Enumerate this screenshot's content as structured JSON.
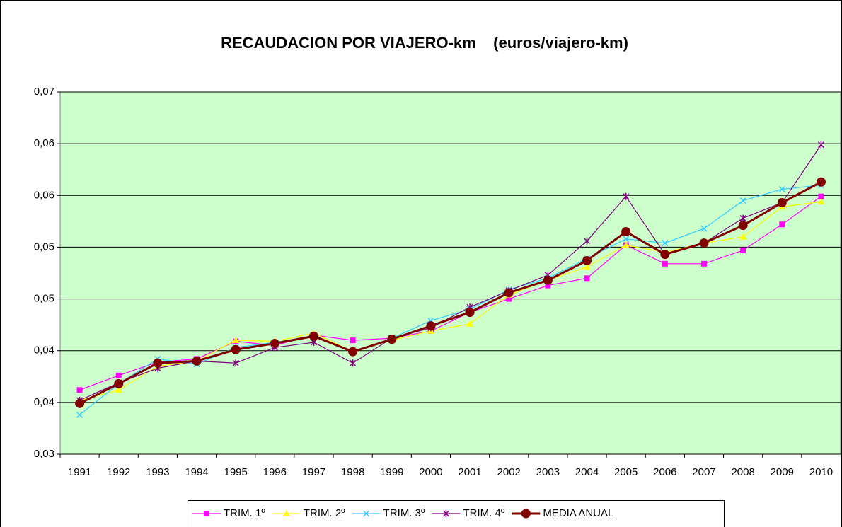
{
  "chart_data": {
    "type": "line",
    "title": "RECAUDACION POR VIAJERO-km    (euros/viajero-km)",
    "categories": [
      "1991",
      "1992",
      "1993",
      "1994",
      "1995",
      "1996",
      "1997",
      "1998",
      "1999",
      "2000",
      "2001",
      "2002",
      "2003",
      "2004",
      "2005",
      "2006",
      "2007",
      "2008",
      "2009",
      "2010"
    ],
    "series": [
      {
        "name": "TRIM. 1º",
        "color": "#ff00ff",
        "marker": "square",
        "values": [
          0.0362,
          0.0376,
          0.0389,
          0.0392,
          0.0409,
          0.0405,
          0.0415,
          0.041,
          0.0412,
          0.0419,
          0.0437,
          0.045,
          0.0463,
          0.047,
          0.0502,
          0.0484,
          0.0484,
          0.0497,
          0.0522,
          0.0549
        ]
      },
      {
        "name": "TRIM. 2º",
        "color": "#ffff00",
        "marker": "triangle",
        "values": [
          0.0352,
          0.0362,
          0.0385,
          0.039,
          0.041,
          0.0409,
          0.0417,
          0.0399,
          0.041,
          0.0419,
          0.0426,
          0.0454,
          0.0468,
          0.0481,
          0.0502,
          0.0495,
          0.0504,
          0.051,
          0.0539,
          0.0544
        ]
      },
      {
        "name": "TRIM. 3º",
        "color": "#33ccff",
        "marker": "x",
        "values": [
          0.0338,
          0.0368,
          0.0392,
          0.0387,
          0.0403,
          0.0408,
          0.0414,
          0.0399,
          0.0412,
          0.0429,
          0.044,
          0.0459,
          0.047,
          0.0489,
          0.0508,
          0.0504,
          0.0518,
          0.0545,
          0.0556,
          0.056
        ]
      },
      {
        "name": "TRIM. 4º",
        "color": "#800080",
        "marker": "star",
        "values": [
          0.0352,
          0.0369,
          0.0383,
          0.039,
          0.0388,
          0.0403,
          0.0408,
          0.0388,
          0.0412,
          0.0422,
          0.0442,
          0.0458,
          0.0473,
          0.0506,
          0.0549,
          0.0493,
          0.0504,
          0.0528,
          0.0543,
          0.0599
        ]
      },
      {
        "name": "MEDIA ANUAL",
        "color": "#800000",
        "marker": "circle",
        "values": [
          0.0349,
          0.0368,
          0.0388,
          0.039,
          0.0401,
          0.0407,
          0.0414,
          0.0399,
          0.0411,
          0.0424,
          0.0437,
          0.0456,
          0.0468,
          0.0487,
          0.0515,
          0.0493,
          0.0504,
          0.0521,
          0.0543,
          0.0563
        ]
      }
    ],
    "ylim": [
      0.03,
      0.065
    ],
    "yticks": [
      {
        "value": 0.03,
        "label": "0,03"
      },
      {
        "value": 0.035,
        "label": "0,04"
      },
      {
        "value": 0.04,
        "label": "0,04"
      },
      {
        "value": 0.045,
        "label": "0,05"
      },
      {
        "value": 0.05,
        "label": "0,05"
      },
      {
        "value": 0.055,
        "label": "0,06"
      },
      {
        "value": 0.06,
        "label": "0,06"
      },
      {
        "value": 0.065,
        "label": "0,07"
      }
    ],
    "grid": true,
    "plot_background": "#ccffcc",
    "legend": "bottom"
  }
}
